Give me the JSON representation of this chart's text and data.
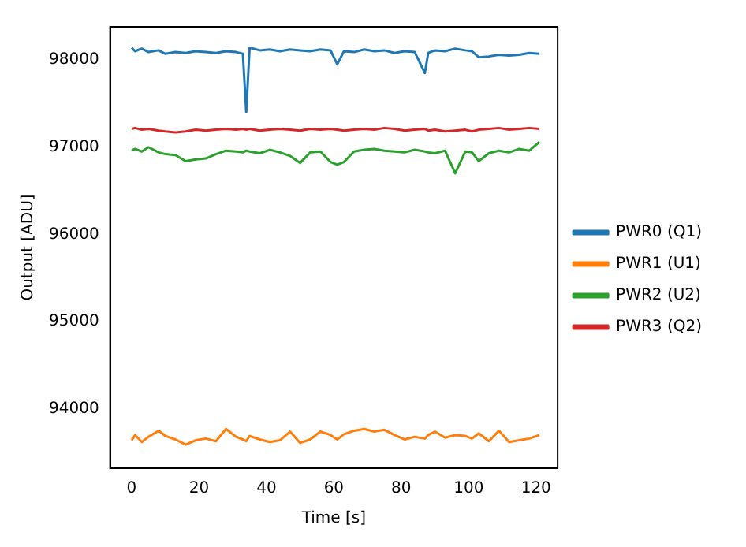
{
  "chart_data": {
    "type": "line",
    "xlabel": "Time [s]",
    "ylabel": "Output [ADU]",
    "xlim": [
      -6.4,
      126.4
    ],
    "xticks": [
      0,
      20,
      40,
      60,
      80,
      100,
      120
    ],
    "ylim": [
      93320,
      98380
    ],
    "yticks": [
      94000,
      95000,
      96000,
      97000,
      98000
    ],
    "legend": "right",
    "grid": false,
    "marker": "none",
    "line_style": "solid",
    "x": [
      0,
      1,
      3,
      5,
      8,
      10,
      13,
      16,
      19,
      22,
      25,
      28,
      31,
      33,
      34,
      35,
      38,
      41,
      44,
      47,
      50,
      53,
      56,
      59,
      61,
      63,
      66,
      69,
      72,
      75,
      78,
      81,
      84,
      87,
      88,
      90,
      93,
      96,
      99,
      101,
      103,
      106,
      109,
      112,
      115,
      118,
      121
    ],
    "series": [
      {
        "name": "PWR0 (Q1)",
        "color": "#1f77b4",
        "values": [
          98140,
          98100,
          98130,
          98090,
          98110,
          98070,
          98090,
          98080,
          98100,
          98090,
          98080,
          98100,
          98090,
          98070,
          97400,
          98140,
          98110,
          98120,
          98100,
          98120,
          98110,
          98100,
          98120,
          98110,
          97950,
          98100,
          98090,
          98120,
          98100,
          98110,
          98080,
          98100,
          98090,
          97850,
          98080,
          98110,
          98100,
          98130,
          98110,
          98100,
          98030,
          98040,
          98060,
          98050,
          98060,
          98080,
          98070
        ]
      },
      {
        "name": "PWR1 (U1)",
        "color": "#ff7f0e",
        "values": [
          93640,
          93700,
          93620,
          93680,
          93750,
          93690,
          93650,
          93590,
          93640,
          93660,
          93630,
          93770,
          93680,
          93650,
          93630,
          93690,
          93650,
          93620,
          93640,
          93740,
          93610,
          93650,
          93740,
          93700,
          93650,
          93710,
          93750,
          93770,
          93740,
          93760,
          93700,
          93650,
          93680,
          93660,
          93700,
          93740,
          93670,
          93700,
          93690,
          93660,
          93720,
          93630,
          93750,
          93620,
          93640,
          93660,
          93700
        ]
      },
      {
        "name": "PWR2 (U2)",
        "color": "#2ca02c",
        "values": [
          96960,
          96980,
          96950,
          97000,
          96940,
          96920,
          96910,
          96840,
          96860,
          96870,
          96920,
          96960,
          96950,
          96940,
          96960,
          96950,
          96930,
          96970,
          96940,
          96900,
          96820,
          96940,
          96950,
          96830,
          96800,
          96830,
          96950,
          96970,
          96980,
          96960,
          96950,
          96940,
          96970,
          96950,
          96940,
          96930,
          96960,
          96700,
          96950,
          96940,
          96840,
          96930,
          96960,
          96940,
          96980,
          96960,
          97060
        ]
      },
      {
        "name": "PWR3 (Q2)",
        "color": "#d62728",
        "values": [
          97210,
          97220,
          97200,
          97210,
          97190,
          97180,
          97170,
          97180,
          97200,
          97190,
          97200,
          97210,
          97200,
          97210,
          97200,
          97210,
          97190,
          97200,
          97210,
          97200,
          97190,
          97210,
          97200,
          97210,
          97200,
          97190,
          97200,
          97210,
          97200,
          97220,
          97210,
          97190,
          97200,
          97210,
          97190,
          97200,
          97180,
          97190,
          97200,
          97180,
          97200,
          97210,
          97220,
          97200,
          97210,
          97220,
          97210
        ]
      }
    ]
  }
}
